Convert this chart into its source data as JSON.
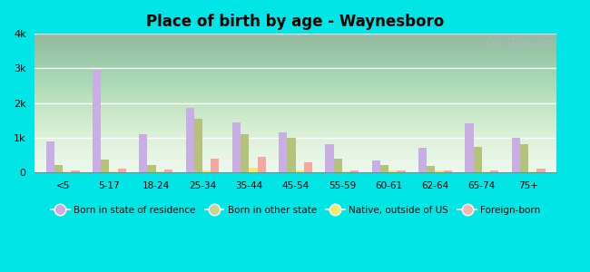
{
  "title": "Place of birth by age - Waynesboro",
  "categories": [
    "<5",
    "5-17",
    "18-24",
    "25-34",
    "35-44",
    "45-54",
    "55-59",
    "60-61",
    "62-64",
    "65-74",
    "75+"
  ],
  "series": {
    "Born in state of residence": [
      900,
      2950,
      1100,
      1850,
      1450,
      1150,
      800,
      350,
      700,
      1400,
      1000
    ],
    "Born in other state": [
      200,
      370,
      200,
      1550,
      1100,
      1000,
      380,
      200,
      180,
      730,
      800
    ],
    "Native, outside of US": [
      20,
      20,
      30,
      60,
      130,
      40,
      20,
      40,
      40,
      20,
      20
    ],
    "Foreign-born": [
      50,
      100,
      80,
      380,
      440,
      280,
      60,
      50,
      40,
      40,
      110
    ]
  },
  "colors": {
    "Born in state of residence": "#c9aee5",
    "Born in other state": "#b5c27a",
    "Native, outside of US": "#f5e96a",
    "Foreign-born": "#f4a8a0"
  },
  "ylim": [
    0,
    4000
  ],
  "yticks": [
    0,
    1000,
    2000,
    3000,
    4000
  ],
  "ytick_labels": [
    "0",
    "1k",
    "2k",
    "3k",
    "4k"
  ],
  "background_color": "#00e5e5",
  "watermark": "City-Data.com",
  "bar_width": 0.18,
  "legend_colors": {
    "Born in state of residence": "#d4a8e8",
    "Born in other state": "#c8d490",
    "Native, outside of US": "#f5e96a",
    "Foreign-born": "#f4b8b0"
  }
}
